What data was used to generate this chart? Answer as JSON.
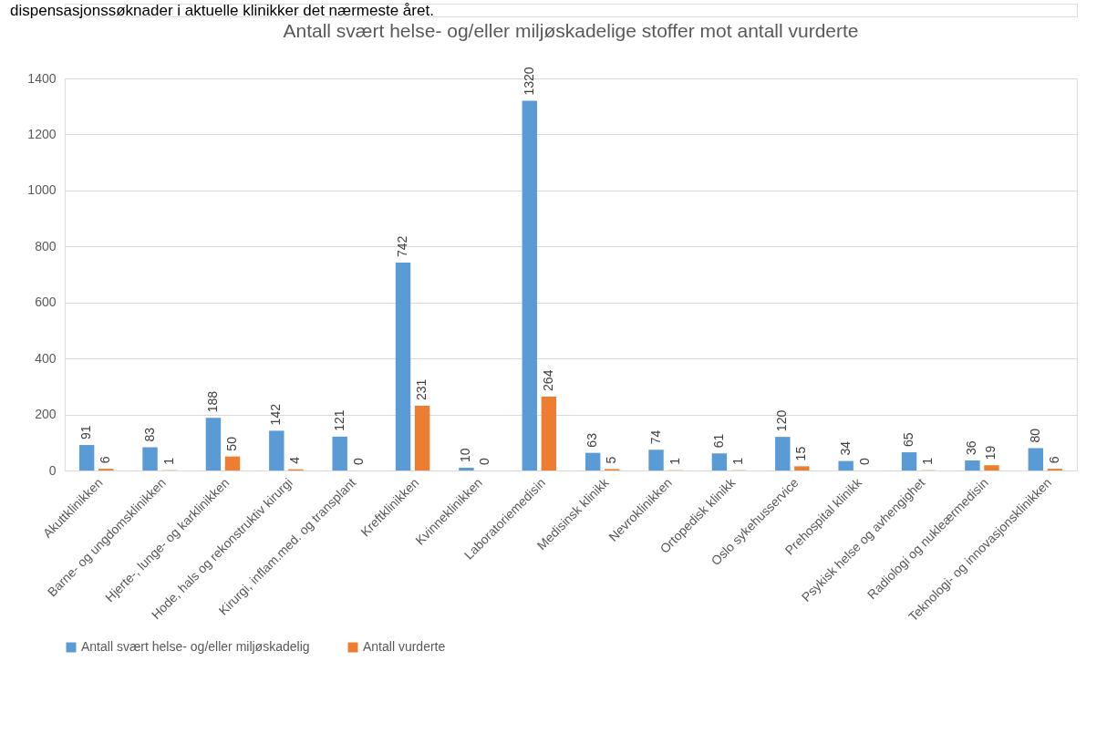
{
  "chart_data": {
    "type": "bar",
    "title": "Antall svært helse- og/eller miljøskadelige stoffer mot antall vurderte",
    "annotations": [
      "dispensasjonssøknader i aktuelle klinikker det nærmeste året."
    ],
    "categories": [
      "Akuttklinikken",
      "Barne- og ungdomsklinikken",
      "Hjerte-, lunge- og karklinikken",
      "Hode, hals og rekonstruktiv kirurgi",
      "Kirurgi, inflam.med. og transplant",
      "Kreftklinikken",
      "Kvinneklinikken",
      "Laboratoriemedisin",
      "Medisinsk klinikk",
      "Nevroklinikken",
      "Ortopedisk klinikk",
      "Oslo sykehusservice",
      "Prehospital klinikk",
      "Psykisk helse og avhengighet",
      "Radiologi og nukleærmedisin",
      "Teknologi- og innovasjonsklinikken"
    ],
    "series": [
      {
        "name": "Antall svært helse- og/eller miljøskadelig",
        "color": "#5b9bd5",
        "values": [
          91,
          83,
          188,
          142,
          121,
          742,
          10,
          1320,
          63,
          74,
          61,
          120,
          34,
          65,
          36,
          80
        ]
      },
      {
        "name": "Antall vurderte",
        "color": "#ed7d31",
        "values": [
          6,
          1,
          50,
          4,
          0,
          231,
          0,
          264,
          5,
          1,
          1,
          15,
          0,
          1,
          19,
          6
        ]
      }
    ],
    "ylim": [
      0,
      1400
    ],
    "yticks": [
      0,
      200,
      400,
      600,
      800,
      1000,
      1200,
      1400
    ],
    "grid": "y",
    "legend": "bottom",
    "data_labels": true
  }
}
